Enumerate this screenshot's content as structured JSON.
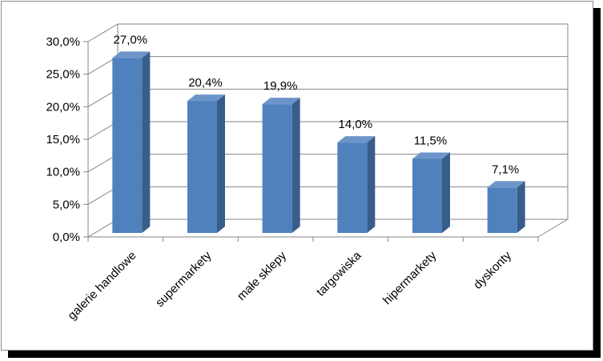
{
  "chart_data": {
    "type": "bar",
    "style": "3d-column",
    "categories": [
      "galerie handlowe",
      "supermarkety",
      "małe sklepy",
      "targowiska",
      "hipermarkety",
      "dyskonty"
    ],
    "values": [
      27.0,
      20.4,
      19.9,
      14.0,
      11.5,
      7.1
    ],
    "data_labels": [
      "27,0%",
      "20,4%",
      "19,9%",
      "14,0%",
      "11,5%",
      "7,1%"
    ],
    "yticks": [
      0,
      5,
      10,
      15,
      20,
      25,
      30
    ],
    "ytick_labels": [
      "0,0%",
      "5,0%",
      "10,0%",
      "15,0%",
      "20,0%",
      "25,0%",
      "30,0%"
    ],
    "ylim": [
      0,
      30
    ],
    "grid": true,
    "legend": "none",
    "colors": {
      "bar_front": "#4f81bd",
      "bar_side": "#385d8a",
      "bar_top": "#6d95c9",
      "grid": "#868686",
      "axis": "#868686"
    }
  }
}
